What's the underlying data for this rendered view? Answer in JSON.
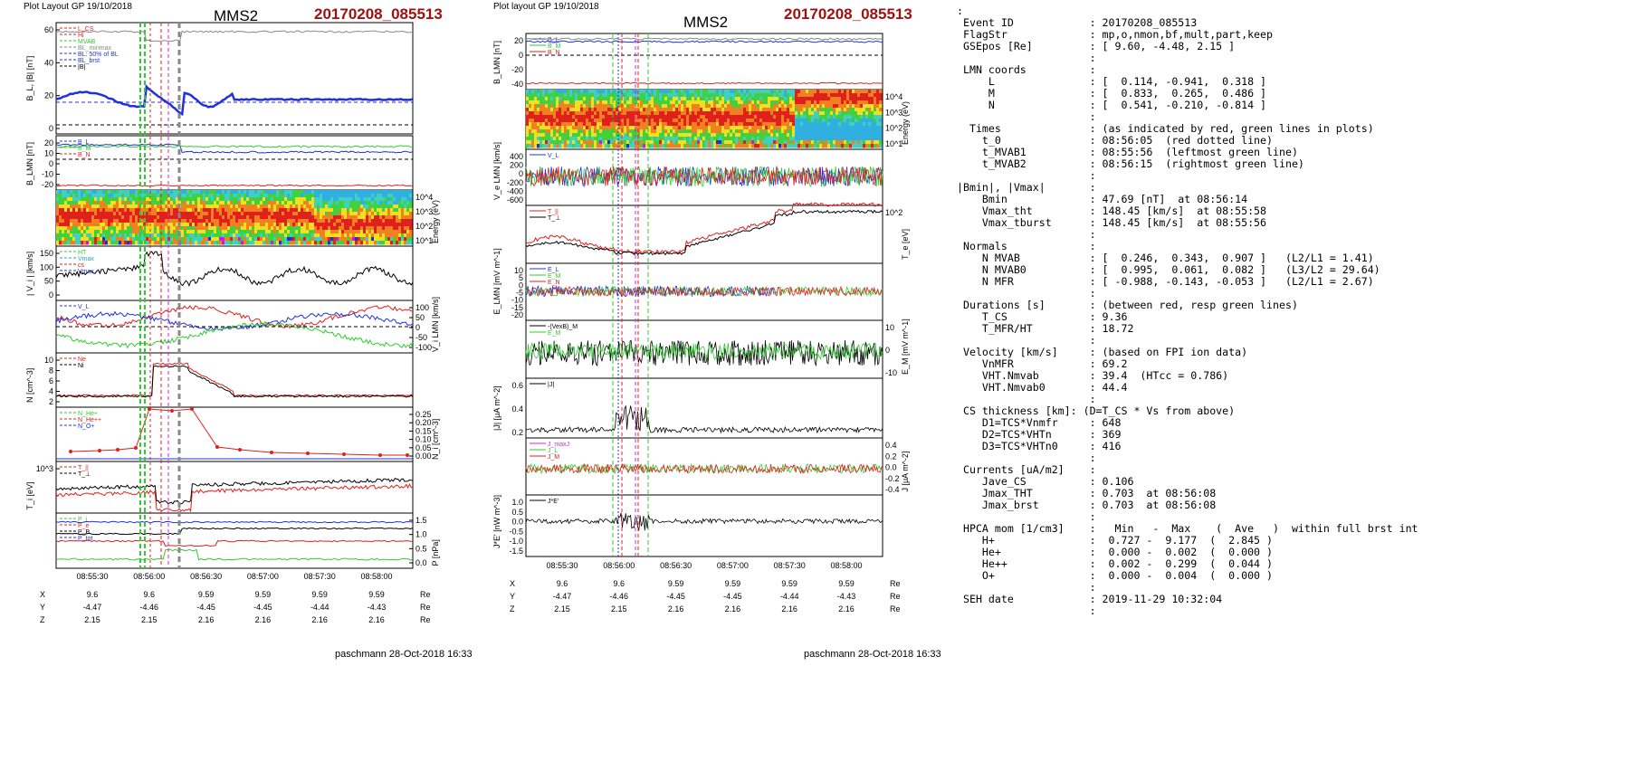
{
  "left_figure": {
    "header_left": "Plot Layout GP 19/10/2018",
    "spacecraft": "MMS2",
    "event": "20170208_085513",
    "footer": "paschmann 28-Oct-2018 16:33",
    "colors": {
      "red": "#e0201c",
      "green": "#2ecc2e",
      "blue": "#2030e0",
      "black": "#000000",
      "gray": "#888888",
      "magenta": "#e020e0",
      "darkred": "#a01010"
    }
  },
  "right_figure": {
    "header_left": "Plot layout GP 19/10/2018",
    "spacecraft": "MMS2",
    "event": "20170208_085513",
    "footer": "paschmann 28-Oct-2018 16:33"
  },
  "time_axis": {
    "tick_labels": [
      "08:55:30",
      "08:56:00",
      "08:56:30",
      "08:57:00",
      "08:57:30",
      "08:58:00"
    ],
    "row_labels": [
      "X",
      "Y",
      "Z"
    ],
    "rows": [
      [
        "9.6",
        "9.6",
        "9.59",
        "9.59",
        "9.59",
        "9.59"
      ],
      [
        "-4.47",
        "-4.46",
        "-4.45",
        "-4.45",
        "-4.44",
        "-4.43"
      ],
      [
        "2.15",
        "2.15",
        "2.16",
        "2.16",
        "2.16",
        "2.16"
      ]
    ],
    "unit": "Re"
  },
  "left_panels": [
    {
      "ylabel": "B_L, |B| [nT]",
      "left_ticks": [
        "60",
        "40",
        "20",
        "0"
      ],
      "right_ticks": [],
      "legend": [
        "L_CS",
        "Hi",
        "MVAB",
        "BL_minmax",
        "BL: 50% of BL",
        "BL_brst",
        "|B|"
      ],
      "legend_colors": [
        "#e0201c",
        "#e0201c",
        "#2ecc2e",
        "#888888",
        "#2030e0",
        "#2030e0",
        "#000000"
      ]
    },
    {
      "ylabel": "B_LMN [nT]",
      "left_ticks": [
        "20",
        "10",
        "0",
        "-10",
        "-20"
      ],
      "right_ticks": [],
      "legend": [
        "B_L",
        "B_M",
        "B_N"
      ],
      "legend_colors": [
        "#2030e0",
        "#2ecc2e",
        "#e0201c"
      ]
    },
    {
      "ylabel": "",
      "left_ticks": [],
      "right_ticks": [
        "10^4",
        "10^3",
        "10^2",
        "10^1"
      ],
      "right_label": "Energy (eV)",
      "legend": [],
      "legend_colors": []
    },
    {
      "ylabel": "| V_i | [km/s]",
      "left_ticks": [
        "150",
        "100",
        "50",
        "0"
      ],
      "right_ticks": [],
      "legend": [
        "HT",
        "Vmax",
        "cs",
        "Vmax"
      ],
      "legend_colors": [
        "#2ecc2e",
        "#20a0e0",
        "#e0201c",
        "#2030e0"
      ]
    },
    {
      "ylabel": "",
      "left_ticks": [],
      "right_ticks": [
        "100",
        "50",
        "0",
        "-50",
        "-100"
      ],
      "right_label": "V_i LMN [km/s]",
      "legend": [
        "V_L"
      ],
      "legend_colors": [
        "#2030e0"
      ]
    },
    {
      "ylabel": "N [cm^-3]",
      "left_ticks": [
        "10",
        "8",
        "6",
        "4",
        "2"
      ],
      "right_ticks": [],
      "legend": [
        "Ne",
        "Ni"
      ],
      "legend_colors": [
        "#e0201c",
        "#000000"
      ]
    },
    {
      "ylabel": "",
      "left_ticks": [],
      "right_ticks": [
        "0.25",
        "0.20",
        "0.15",
        "0.10",
        "0.05",
        "0.00"
      ],
      "right_label": "N_i [cm^-3]",
      "legend": [
        "N_He+",
        "N_He++",
        "N_O+"
      ],
      "legend_colors": [
        "#2ecc2e",
        "#e0201c",
        "#2030e0"
      ]
    },
    {
      "ylabel": "T_i [eV]",
      "left_ticks": [
        "10^3"
      ],
      "right_ticks": [],
      "legend": [
        "T_||",
        "T_⊥"
      ],
      "legend_colors": [
        "#e0201c",
        "#000000"
      ]
    },
    {
      "ylabel": "",
      "left_ticks": [],
      "right_ticks": [
        "1.5",
        "1.0",
        "0.5",
        "0.0"
      ],
      "right_label": "P [nPa]",
      "legend": [
        "P_i",
        "P_e",
        "P_B",
        "P_tot"
      ],
      "legend_colors": [
        "#2ecc2e",
        "#e0201c",
        "#000000",
        "#2030e0"
      ]
    }
  ],
  "right_panels": [
    {
      "ylabel": "B_LMN [nT]",
      "left_ticks": [
        "20",
        "0",
        "-20",
        "-40"
      ],
      "right_ticks": [],
      "legend": [
        "B_L",
        "B_M",
        "B_N"
      ],
      "legend_colors": [
        "#2030e0",
        "#2ecc2e",
        "#e0201c"
      ]
    },
    {
      "ylabel": "",
      "left_ticks": [],
      "right_ticks": [
        "10^4",
        "10^3",
        "10^2",
        "10^1"
      ],
      "right_label": "Energy (eV)",
      "legend": [],
      "legend_colors": []
    },
    {
      "ylabel": "V_e LMN [km/s]",
      "left_ticks": [
        "400",
        "200",
        "0",
        "-200",
        "-400",
        "-600"
      ],
      "right_ticks": [],
      "legend": [
        "V_L"
      ],
      "legend_colors": [
        "#2030e0"
      ]
    },
    {
      "ylabel": "",
      "left_ticks": [],
      "right_ticks": [
        "10^2"
      ],
      "right_label": "T_e [eV]",
      "legend": [
        "T_||",
        "T_⊥"
      ],
      "legend_colors": [
        "#e0201c",
        "#000000"
      ]
    },
    {
      "ylabel": "E_LMN [mV m^-1]",
      "left_ticks": [
        "10",
        "5",
        "0",
        "-5",
        "-10",
        "-15",
        "-20"
      ],
      "right_ticks": [],
      "legend": [
        "E_L",
        "E_M",
        "E_N"
      ],
      "legend_colors": [
        "#2030e0",
        "#2ecc2e",
        "#e0201c"
      ]
    },
    {
      "ylabel": "",
      "left_ticks": [],
      "right_ticks": [
        "10",
        "0",
        "-10"
      ],
      "right_label": "E_M [mV m^-1]",
      "legend": [
        "-(VexB)_M",
        "E_M"
      ],
      "legend_colors": [
        "#000000",
        "#2ecc2e"
      ]
    },
    {
      "ylabel": "|J| [μA m^-2]",
      "left_ticks": [
        "0.6",
        "0.4",
        "0.2"
      ],
      "right_ticks": [],
      "legend": [
        "|J|"
      ],
      "legend_colors": [
        "#000000"
      ]
    },
    {
      "ylabel": "",
      "left_ticks": [],
      "right_ticks": [
        "0.4",
        "0.2",
        "0.0",
        "-0.2",
        "-0.4"
      ],
      "right_label": "J [μA m^-2]",
      "legend": [
        "J_maxJ",
        "J_L",
        "J_M"
      ],
      "legend_colors": [
        "#e020e0",
        "#2ecc2e",
        "#e0201c"
      ]
    },
    {
      "ylabel": "J*E' [nW m^-3]",
      "left_ticks": [
        "1.0",
        "0.5",
        "0.0",
        "-0.5",
        "-1.0",
        "-1.5"
      ],
      "right_ticks": [],
      "legend": [
        "J*E'"
      ],
      "legend_colors": [
        "#000000"
      ]
    }
  ],
  "chart_data": [
    {
      "type": "line",
      "title": "MMS2",
      "subtitle": "20170208_085513",
      "panel": "left",
      "xlabel": "",
      "x_ticks": [
        "08:55:30",
        "08:56:00",
        "08:56:30",
        "08:57:00",
        "08:57:30",
        "08:58:00"
      ],
      "series": [
        {
          "name": "|B|",
          "values": [
            58,
            58,
            57,
            55,
            56,
            57,
            56,
            57
          ]
        },
        {
          "name": "BL_brst",
          "values": [
            16,
            20,
            27,
            0,
            10,
            16,
            15,
            15
          ]
        }
      ],
      "ylim": [
        -5,
        60
      ]
    },
    {
      "type": "line",
      "panel": "left",
      "series": [
        {
          "name": "Ne",
          "values": [
            2.5,
            3,
            3.5,
            10,
            8,
            5,
            3,
            2.5,
            2
          ]
        },
        {
          "name": "Ni",
          "values": [
            2.5,
            3,
            3.5,
            9.5,
            8,
            5,
            3,
            2.5,
            2
          ]
        }
      ],
      "ylim": [
        0,
        11
      ]
    },
    {
      "type": "line",
      "panel": "left",
      "series": [
        {
          "name": "N_He++",
          "values": [
            0.03,
            0.03,
            0.04,
            0.05,
            0.27,
            0.26,
            0.27,
            0.04,
            0.03,
            0.02,
            0.02,
            0.01
          ]
        }
      ],
      "ylim": [
        0,
        0.28
      ]
    },
    {
      "type": "line",
      "panel": "right",
      "series": [
        {
          "name": "|J|",
          "values": [
            0.05,
            0.1,
            0.08,
            0.12,
            0.6,
            0.3,
            0.15,
            0.08,
            0.05,
            0.03
          ]
        }
      ],
      "ylim": [
        0,
        0.7
      ]
    }
  ],
  "info": {
    "lines": [
      ":",
      " Event ID            : 20170208_085513",
      " FlagStr             : mp,o,nmon,bf,mult,part,keep",
      " GSEpos [Re]         : [ 9.60, -4.48, 2.15 ]",
      "                     :",
      " LMN coords          :",
      "     L               : [  0.114, -0.941,  0.318 ]",
      "     M               : [  0.833,  0.265,  0.486 ]",
      "     N               : [  0.541, -0.210, -0.814 ]",
      "                     :",
      "  Times              : (as indicated by red, green lines in plots)",
      "    t_0              : 08:56:05  (red dotted line)",
      "    t_MVAB1          : 08:55:56  (leftmost green line)",
      "    t_MVAB2          : 08:56:15  (rightmost green line)",
      "                     :",
      "|Bmin|, |Vmax|       :",
      "    Bmin             : 47.69 [nT]  at 08:56:14",
      "    Vmax_tht         : 148.45 [km/s]  at 08:55:58",
      "    Vmax_tburst      : 148.45 [km/s]  at 08:55:56",
      "                     :",
      " Normals             :",
      "    N MVAB           : [  0.246,  0.343,  0.907 ]   (L2/L1 = 1.41)",
      "    N MVAB0          : [  0.995,  0.061,  0.082 ]   (L3/L2 = 29.64)",
      "    N MFR            : [ -0.988, -0.143, -0.053 ]   (L2/L1 = 2.67)",
      "                     :",
      " Durations [s]       : (between red, resp green lines)",
      "    T_CS             : 9.36",
      "    T_MFR/HT         : 18.72",
      "                     :",
      " Velocity [km/s]     : (based on FPI ion data)",
      "    VnMFR            : 69.2",
      "    VHT.Nmvab        : 39.4  (HTcc = 0.786)",
      "    VHT.Nmvab0       : 44.4",
      "                     :",
      " CS thickness [km]: (D=T_CS * Vs from above)",
      "    D1=TCS*Vnmfr     : 648",
      "    D2=TCS*VHTn      : 369",
      "    D3=TCS*VHTn0     : 416",
      "                     :",
      " Currents [uA/m2]    :",
      "    Jave_CS          : 0.106",
      "    Jmax_THT         : 0.703  at 08:56:08",
      "    Jmax_brst        : 0.703  at 08:56:08",
      "                     :",
      " HPCA mom [1/cm3]    :   Min   -  Max    (  Ave   )  within full brst int",
      "    H+               :  0.727 -  9.177  (  2.845 )",
      "    He+              :  0.000 -  0.002  (  0.000 )",
      "    He++             :  0.002 -  0.299  (  0.044 )",
      "    O+               :  0.000 -  0.004  (  0.000 )",
      "                     :",
      " SEH date            : 2019-11-29 10:32:04",
      "                     :"
    ]
  }
}
